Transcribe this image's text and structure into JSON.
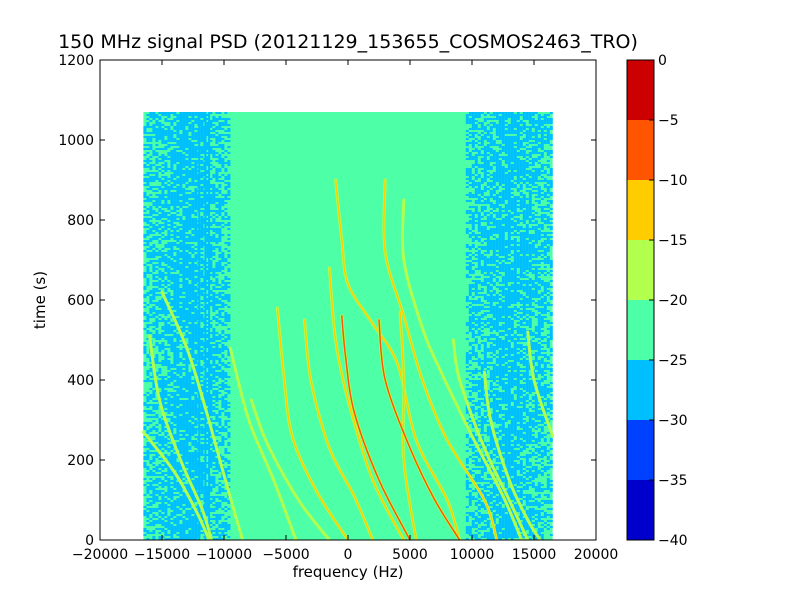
{
  "chart_data": {
    "type": "heatmap",
    "title": "150 MHz signal PSD (20121129_153655_COSMOS2463_TRO)",
    "xlabel": "frequency (Hz)",
    "ylabel": "time (s)",
    "xlim": [
      -20000,
      20000
    ],
    "ylim": [
      0,
      1200
    ],
    "xticks": [
      -20000,
      -15000,
      -10000,
      -5000,
      0,
      5000,
      10000,
      15000,
      20000
    ],
    "xtick_labels": [
      "−20000",
      "−15000",
      "−10000",
      "−5000",
      "0",
      "5000",
      "10000",
      "15000",
      "20000"
    ],
    "yticks": [
      0,
      200,
      400,
      600,
      800,
      1000,
      1200
    ],
    "ytick_labels": [
      "0",
      "200",
      "400",
      "600",
      "800",
      "1000",
      "1200"
    ],
    "data_extent": {
      "x": [
        -16500,
        16500
      ],
      "y": [
        0,
        1070
      ]
    },
    "colorbar": {
      "range": [
        -40,
        0
      ],
      "ticks": [
        0,
        -5,
        -10,
        -15,
        -20,
        -25,
        -30,
        -35,
        -40
      ],
      "tick_labels": [
        "0",
        "−5",
        "−10",
        "−15",
        "−20",
        "−25",
        "−30",
        "−35",
        "−40"
      ],
      "levels": [
        {
          "range": [
            -40,
            -35
          ],
          "color": "#0000cc"
        },
        {
          "range": [
            -35,
            -30
          ],
          "color": "#0040ff"
        },
        {
          "range": [
            -30,
            -25
          ],
          "color": "#00bfff"
        },
        {
          "range": [
            -25,
            -20
          ],
          "color": "#4dffa6"
        },
        {
          "range": [
            -20,
            -15
          ],
          "color": "#b3ff4d"
        },
        {
          "range": [
            -15,
            -10
          ],
          "color": "#ffcc00"
        },
        {
          "range": [
            -10,
            -5
          ],
          "color": "#ff5500"
        },
        {
          "range": [
            -5,
            0
          ],
          "color": "#cc0000"
        }
      ]
    },
    "background_level": -22.5,
    "noise_bands": [
      {
        "x": [
          -16500,
          -9500
        ],
        "level": -27.5
      },
      {
        "x": [
          9500,
          16500
        ],
        "level": -27.5
      }
    ],
    "vertical_lines": [
      {
        "x": -12000,
        "level": -27.5
      },
      {
        "x": -11500,
        "level": -27.5
      },
      {
        "x": -11200,
        "level": -27.5
      }
    ],
    "series": [
      {
        "points": [
          [
            -16500,
            270
          ],
          [
            -14000,
            170
          ],
          [
            -12200,
            70
          ],
          [
            -11200,
            0
          ]
        ],
        "level": -17.5
      },
      {
        "points": [
          [
            -16000,
            510
          ],
          [
            -15200,
            350
          ],
          [
            -13500,
            200
          ],
          [
            -11800,
            80
          ],
          [
            -11000,
            0
          ]
        ],
        "level": -17.5
      },
      {
        "points": [
          [
            -15000,
            620
          ],
          [
            -13000,
            480
          ],
          [
            -11500,
            330
          ],
          [
            -9800,
            140
          ],
          [
            -8500,
            0
          ]
        ],
        "level": -17.5
      },
      {
        "points": [
          [
            -9500,
            480
          ],
          [
            -8000,
            300
          ],
          [
            -6000,
            150
          ],
          [
            -4200,
            0
          ]
        ],
        "level": -17.5
      },
      {
        "points": [
          [
            -7800,
            350
          ],
          [
            -6500,
            240
          ],
          [
            -4000,
            100
          ],
          [
            -1500,
            0
          ]
        ],
        "level": -17.5
      },
      {
        "points": [
          [
            -5700,
            580
          ],
          [
            -5200,
            420
          ],
          [
            -4500,
            260
          ],
          [
            -2500,
            120
          ],
          [
            0,
            0
          ]
        ],
        "level": -12.5
      },
      {
        "points": [
          [
            -3500,
            550
          ],
          [
            -3000,
            400
          ],
          [
            -1500,
            230
          ],
          [
            500,
            110
          ],
          [
            2000,
            0
          ]
        ],
        "level": -12.5
      },
      {
        "points": [
          [
            -1500,
            680
          ],
          [
            -1000,
            500
          ],
          [
            0,
            350
          ],
          [
            2000,
            150
          ],
          [
            4500,
            0
          ]
        ],
        "level": -10
      },
      {
        "points": [
          [
            -500,
            560
          ],
          [
            -200,
            460
          ],
          [
            500,
            320
          ],
          [
            2500,
            150
          ],
          [
            5000,
            0
          ]
        ],
        "level": -5
      },
      {
        "points": [
          [
            -1000,
            900
          ],
          [
            -500,
            750
          ],
          [
            0,
            640
          ],
          [
            2000,
            540
          ],
          [
            4000,
            440
          ],
          [
            5500,
            250
          ],
          [
            8000,
            100
          ],
          [
            9000,
            0
          ]
        ],
        "level": -10
      },
      {
        "points": [
          [
            3000,
            900
          ],
          [
            3000,
            720
          ],
          [
            4500,
            560
          ],
          [
            6000,
            400
          ],
          [
            8000,
            250
          ],
          [
            11000,
            100
          ],
          [
            12000,
            0
          ]
        ],
        "level": -12.5
      },
      {
        "points": [
          [
            4500,
            850
          ],
          [
            4500,
            700
          ],
          [
            6000,
            530
          ],
          [
            7500,
            420
          ],
          [
            10000,
            260
          ],
          [
            12500,
            110
          ],
          [
            14000,
            0
          ]
        ],
        "level": -15
      },
      {
        "points": [
          [
            4200,
            570
          ],
          [
            4500,
            400
          ],
          [
            4500,
            200
          ],
          [
            5500,
            0
          ]
        ],
        "level": -10
      },
      {
        "points": [
          [
            2500,
            550
          ],
          [
            3000,
            400
          ],
          [
            5000,
            230
          ],
          [
            7000,
            100
          ],
          [
            9000,
            0
          ]
        ],
        "level": -7.5
      },
      {
        "points": [
          [
            8500,
            500
          ],
          [
            9000,
            400
          ],
          [
            11000,
            230
          ],
          [
            13000,
            100
          ],
          [
            14500,
            0
          ]
        ],
        "level": -17.5
      },
      {
        "points": [
          [
            11000,
            420
          ],
          [
            11500,
            300
          ],
          [
            13000,
            150
          ],
          [
            14500,
            50
          ],
          [
            15500,
            0
          ]
        ],
        "level": -17.5
      },
      {
        "points": [
          [
            14500,
            520
          ],
          [
            15000,
            400
          ],
          [
            16500,
            260
          ]
        ],
        "level": -17.5
      }
    ]
  }
}
